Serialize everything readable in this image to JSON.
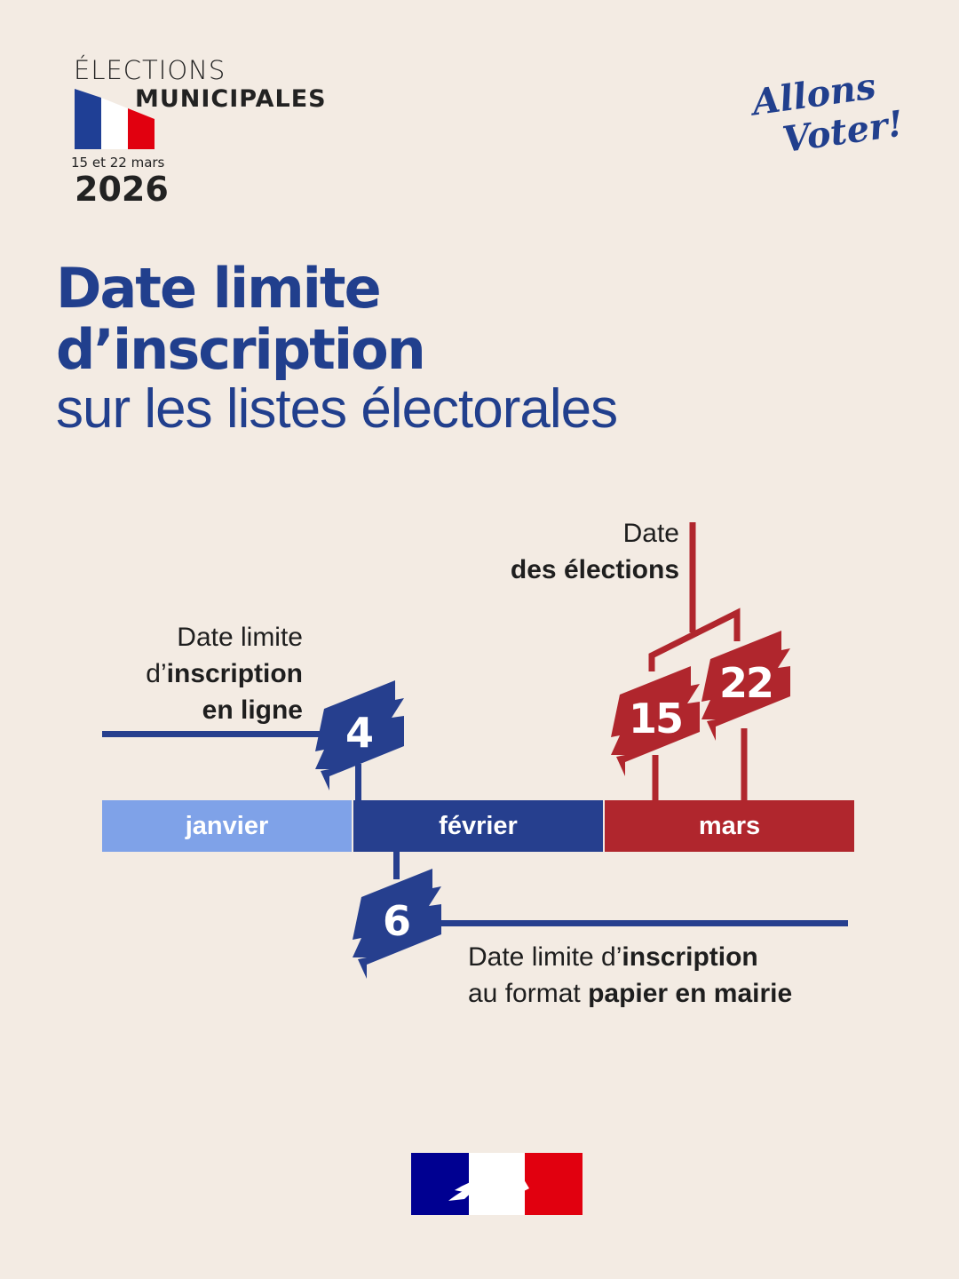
{
  "header": {
    "elections": "ÉLECTIONS",
    "municipales": "MUNICIPALES",
    "dates": "15 et 22 mars",
    "year": "2026",
    "logo_line1": "Allons",
    "logo_line2": "Voter!"
  },
  "title": {
    "line1": "Date limite",
    "line2": "d’inscription",
    "line3": "sur les listes électorales"
  },
  "timeline": {
    "months": [
      "janvier",
      "février",
      "mars"
    ],
    "online": {
      "day": "4",
      "l1": "Date limite",
      "l2a": "d’",
      "l2b": "inscription",
      "l3": "en ligne"
    },
    "paper": {
      "day": "6",
      "l1a": "Date limite d’",
      "l1b": "inscription",
      "l2a": "au format ",
      "l2b": "papier en mairie"
    },
    "elections": {
      "day1": "15",
      "day2": "22",
      "l1": "Date",
      "l2": "des élections"
    }
  },
  "colors": {
    "background": "#f3ebe3",
    "blue": "#263f8e",
    "light_blue": "#7fa2e8",
    "red": "#b0262d",
    "title_blue": "#213f8d"
  }
}
